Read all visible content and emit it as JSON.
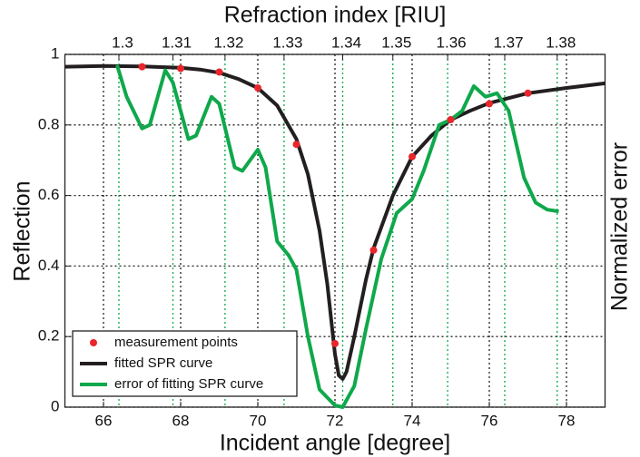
{
  "chart_data": {
    "type": "line",
    "xlabel": "Incident angle [degree]",
    "ylabel": "Reflection",
    "x2label": "Refraction index [RIU]",
    "y2label": "Normalized error",
    "xlim": [
      65,
      79
    ],
    "xticks": [
      66,
      68,
      70,
      72,
      74,
      76,
      78
    ],
    "ylim": [
      0,
      1
    ],
    "yticks": [
      0,
      0.2,
      0.4,
      0.6,
      0.8,
      1
    ],
    "y2lim": [
      0,
      1
    ],
    "x2ticks": [
      1.3,
      1.31,
      1.32,
      1.33,
      1.34,
      1.35,
      1.36,
      1.37,
      1.38
    ],
    "x2tick_positions": [
      66.4,
      67.8,
      69.15,
      70.68,
      72.2,
      73.5,
      74.92,
      76.4,
      77.76
    ],
    "grid": true,
    "legend": "lower left",
    "series": [
      {
        "name": "measurement points",
        "color": "#e8262b",
        "style": "points",
        "x": [
          67,
          68,
          69,
          70,
          71,
          72,
          73,
          74,
          75,
          76,
          77
        ],
        "values": [
          0.965,
          0.96,
          0.95,
          0.905,
          0.745,
          0.18,
          0.445,
          0.71,
          0.815,
          0.86,
          0.89
        ]
      },
      {
        "name": "fitted SPR curve",
        "color": "#231f20",
        "style": "line",
        "x": [
          65,
          66,
          67,
          68,
          68.5,
          69,
          69.5,
          70,
          70.5,
          71,
          71.3,
          71.6,
          71.8,
          72,
          72.1,
          72.2,
          72.3,
          72.5,
          72.8,
          73,
          73.5,
          74,
          74.5,
          75,
          75.5,
          76,
          76.5,
          77,
          78,
          79
        ],
        "values": [
          0.965,
          0.967,
          0.966,
          0.962,
          0.957,
          0.948,
          0.93,
          0.905,
          0.855,
          0.76,
          0.66,
          0.5,
          0.35,
          0.15,
          0.09,
          0.08,
          0.1,
          0.2,
          0.36,
          0.45,
          0.6,
          0.71,
          0.77,
          0.815,
          0.84,
          0.862,
          0.876,
          0.89,
          0.905,
          0.918
        ]
      },
      {
        "name": "error of fitting SPR curve",
        "color": "#0fa84b",
        "style": "line",
        "axis": "y2",
        "x": [
          66.35,
          66.6,
          67,
          67.2,
          67.6,
          67.8,
          68.2,
          68.4,
          68.8,
          69,
          69.4,
          69.6,
          70,
          70.2,
          70.5,
          70.8,
          71,
          71.3,
          71.6,
          72,
          72.2,
          72.5,
          72.8,
          73.2,
          73.6,
          74,
          74.3,
          74.7,
          75,
          75.3,
          75.6,
          75.9,
          76.2,
          76.5,
          76.9,
          77.2,
          77.5,
          77.8
        ],
        "values": [
          0.97,
          0.88,
          0.79,
          0.8,
          0.955,
          0.92,
          0.76,
          0.77,
          0.88,
          0.86,
          0.68,
          0.67,
          0.73,
          0.68,
          0.47,
          0.43,
          0.39,
          0.2,
          0.05,
          0.005,
          0.0,
          0.06,
          0.22,
          0.42,
          0.55,
          0.59,
          0.67,
          0.8,
          0.815,
          0.84,
          0.91,
          0.88,
          0.89,
          0.84,
          0.65,
          0.58,
          0.56,
          0.555
        ]
      }
    ]
  }
}
